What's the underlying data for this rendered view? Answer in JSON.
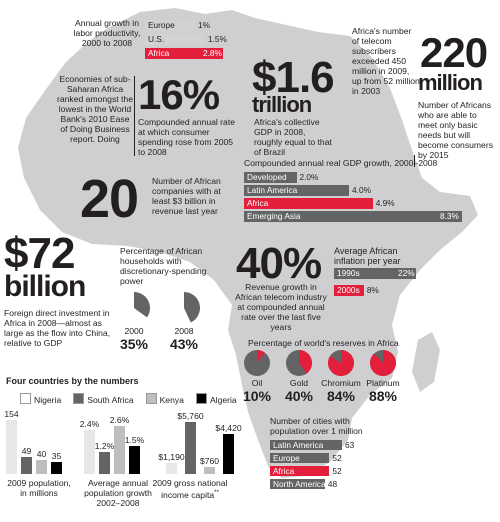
{
  "colors": {
    "map": "#cfcfd1",
    "bar_grey": "#636466",
    "bar_red": "#e41f3b",
    "dark": "#231f20",
    "light_bar": "#d1d2d4",
    "pie_grey": "#bcbec0"
  },
  "labor": {
    "title": "Annual growth in labor productivity, 2000 to 2008",
    "rows": [
      {
        "label": "Europe",
        "value": "1%",
        "v": 1
      },
      {
        "label": "U.S.",
        "value": "1.5%",
        "v": 1.5
      },
      {
        "label": "Africa",
        "value": "2.8%",
        "v": 2.8
      }
    ]
  },
  "gdp_collective": {
    "big": "$1.6",
    "unit": "trillion",
    "text": "Africa's collective GDP in 2008, roughly equal to that of Brazil"
  },
  "telecom_subs": {
    "text": "Africa's number of telecom subscribers exceeded 450 million in 2009, up from 52 million in 2003"
  },
  "millions": {
    "big": "220",
    "unit": "million",
    "text": "Number of Africans who are able to meet only basic needs but will become consumers by 2015"
  },
  "ease": {
    "text": "Economies of sub-Saharan Africa ranked amongst the lowest in the World Bank's 2010 Ease of Doing Business report. Doing"
  },
  "consumer": {
    "big": "16%",
    "text": "Compounded annual rate at which consumer spending rose from 2005 to 2008"
  },
  "real_gdp": {
    "title": "Compounded annual real GDP growth, 2000–2008",
    "rows": [
      {
        "label": "Developed",
        "value": "2.0%",
        "v": 2.0
      },
      {
        "label": "Latin America",
        "value": "4.0%",
        "v": 4.0
      },
      {
        "label": "Africa",
        "value": "4.9%",
        "v": 4.9
      },
      {
        "label": "Emerging Asia",
        "value": "8.3%",
        "v": 8.3
      }
    ]
  },
  "companies": {
    "big": "20",
    "text": "Number of African companies with at least $3 billion in revenue last year"
  },
  "fdi": {
    "big": "$72",
    "unit": "billion",
    "text": "Foreign direct investment in Africa in 2008—almost as large as the flow into China, relative to GDP"
  },
  "households": {
    "title": "Percentage of African households with discretionary-spending power",
    "pies": [
      {
        "year": "2000",
        "pct": "35%",
        "v": 35
      },
      {
        "year": "2008",
        "pct": "43%",
        "v": 43
      }
    ]
  },
  "telecom_rev": {
    "big": "40%",
    "text": "Revenue growth in African telecom industry at compounded annual rate over the last five years"
  },
  "inflation": {
    "title": "Average African inflation per year",
    "rows": [
      {
        "label": "1990s",
        "value": "22%",
        "v": 22
      },
      {
        "label": "2000s",
        "value": "8%",
        "v": 8
      }
    ]
  },
  "reserves": {
    "title": "Percentage of world's reserves in Africa",
    "pies": [
      {
        "label": "Oil",
        "pct": "10%",
        "v": 10
      },
      {
        "label": "Gold",
        "pct": "40%",
        "v": 40
      },
      {
        "label": "Chromium",
        "pct": "84%",
        "v": 84
      },
      {
        "label": "Platinum",
        "pct": "88%",
        "v": 88
      }
    ]
  },
  "cities": {
    "title": "Number of cities with population over 1 million",
    "rows": [
      {
        "label": "Latin America",
        "value": "63",
        "v": 63
      },
      {
        "label": "Europe",
        "value": "52",
        "v": 52
      },
      {
        "label": "Africa",
        "value": "52",
        "v": 52
      },
      {
        "label": "North America",
        "value": "48",
        "v": 48
      }
    ]
  },
  "four": {
    "title": "Four countries by the numbers",
    "legend": [
      "Nigeria",
      "South Africa",
      "Kenya",
      "Algeria"
    ],
    "population": {
      "caption": "2009 population, in millions",
      "labels": [
        "154",
        "49",
        "40",
        "35"
      ],
      "v": [
        154,
        49,
        40,
        35
      ]
    },
    "growth": {
      "caption": "Average annual population growth 2002–2008",
      "labels": [
        "2.4%",
        "1.2%",
        "2.6%",
        "1.5%"
      ],
      "v": [
        2.4,
        1.2,
        2.6,
        1.5
      ]
    },
    "income": {
      "caption": "2009 gross national income capita",
      "footnote": "**",
      "labels": [
        "$1,190",
        "$5,760",
        "$760",
        "$4,420"
      ],
      "v": [
        1190,
        5760,
        760,
        4420
      ]
    }
  }
}
